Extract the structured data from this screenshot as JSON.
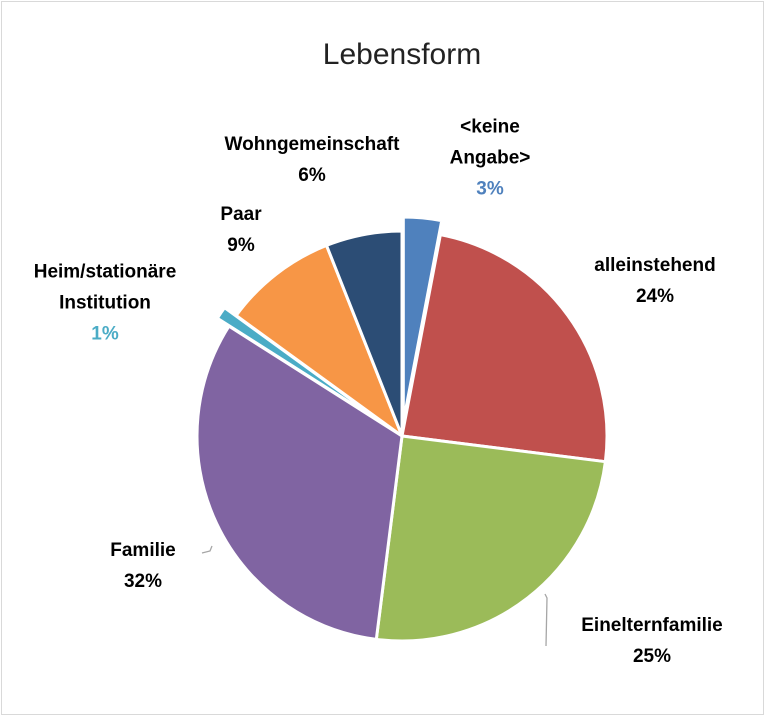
{
  "chart_data": {
    "type": "pie",
    "title": "Lebensform",
    "categories": [
      "<keine Angabe>",
      "alleinstehend",
      "Einelternfamilie",
      "Familie",
      "Heim/stationäre Institution",
      "Paar",
      "Wohngemeinschaft"
    ],
    "values": [
      3,
      24,
      25,
      32,
      1,
      9,
      6
    ],
    "value_labels": [
      "3%",
      "24%",
      "25%",
      "32%",
      "1%",
      "9%",
      "6%"
    ],
    "colors": [
      "#4f81bd",
      "#c0504d",
      "#9bbb59",
      "#8064a2",
      "#4bacc6",
      "#f79646",
      "#2c4d75"
    ],
    "label_colors": [
      "#4f81bd",
      "#000000",
      "#000000",
      "#000000",
      "#4bacc6",
      "#000000",
      "#000000"
    ]
  }
}
